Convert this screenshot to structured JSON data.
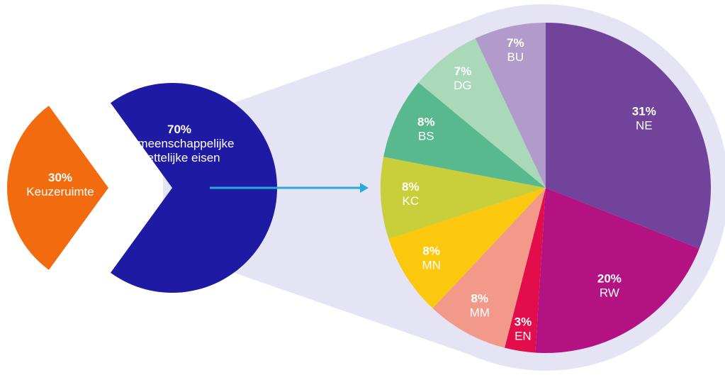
{
  "chart_data": [
    {
      "type": "pie",
      "slices": [
        {
          "label": "Keuzeruimte",
          "value": 30,
          "value_label": "30%",
          "color": "#f26b0f"
        },
        {
          "label": "gemeenschappelijke wettelijke eisen",
          "value": 70,
          "value_label": "70%",
          "color": "#1e1aa3"
        }
      ]
    },
    {
      "type": "pie",
      "slices": [
        {
          "label": "NE",
          "value": 31,
          "value_label": "31%",
          "color": "#72439a"
        },
        {
          "label": "RW",
          "value": 20,
          "value_label": "20%",
          "color": "#b41183"
        },
        {
          "label": "EN",
          "value": 3,
          "value_label": "3%",
          "color": "#e30d4b"
        },
        {
          "label": "MM",
          "value": 8,
          "value_label": "8%",
          "color": "#f2998a"
        },
        {
          "label": "MN",
          "value": 8,
          "value_label": "8%",
          "color": "#fbc80e"
        },
        {
          "label": "KC",
          "value": 8,
          "value_label": "8%",
          "color": "#c9cf3a"
        },
        {
          "label": "BS",
          "value": 8,
          "value_label": "8%",
          "color": "#58b98e"
        },
        {
          "label": "DG",
          "value": 7,
          "value_label": "7%",
          "color": "#a9d9b9"
        },
        {
          "label": "BU",
          "value": 7,
          "value_label": "7%",
          "color": "#b09bcb"
        }
      ]
    }
  ],
  "colors": {
    "funnel_background": "#e4e4f5",
    "arrow": "#2aa9dc",
    "label_text": "#ffffff"
  }
}
